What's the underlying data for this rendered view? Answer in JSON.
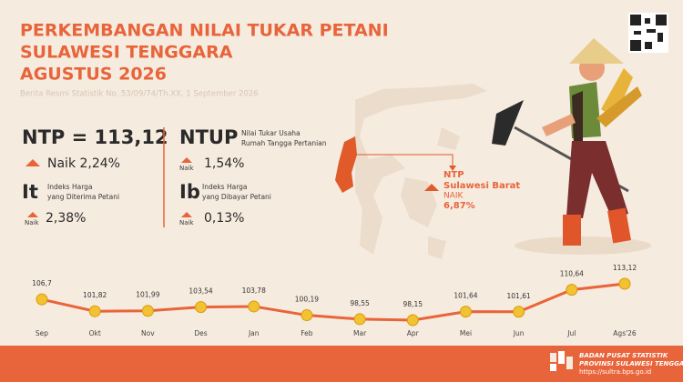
{
  "header": {
    "title_lines": [
      "PERKEMBANGAN NILAI TUKAR PETANI",
      "SULAWESI TENGGARA",
      "AGUSTUS 2026"
    ],
    "subtitle": "Berita Resmi Statistik No. 53/09/74/Th.XX, 1 September 2026"
  },
  "stats": {
    "ntp": {
      "label": "NTP = 113,12",
      "change": "Naik 2,24%"
    },
    "it": {
      "label": "It",
      "desc": [
        "Indeks Harga",
        "yang Diterima Petani"
      ],
      "change_word": "Naik",
      "change": "2,38%"
    },
    "ntup": {
      "label": "NTUP",
      "desc": [
        "Nilai Tukar Usaha",
        "Rumah Tangga Pertanian"
      ],
      "change_word": "Naik",
      "change": "1,54%"
    },
    "ib": {
      "label": "Ib",
      "desc": [
        "Indeks Harga",
        "yang Dibayar Petani"
      ],
      "change_word": "Naik",
      "change": "0,13%"
    }
  },
  "map_callout": {
    "lines": [
      "NTP",
      "Sulawesi Barat"
    ],
    "change_word": "NAIK",
    "change": "6,87%"
  },
  "footer": {
    "lines": [
      "BADAN PUSAT STATISTIK",
      "PROVINSI SULAWESI TENGGARA",
      "https://sultra.bps.go.id"
    ]
  },
  "chart_data": {
    "type": "line",
    "categories": [
      "Sep",
      "Okt",
      "Nov",
      "Des",
      "Jan",
      "Feb",
      "Mar",
      "Apr",
      "Mei",
      "Jun",
      "Jul",
      "Ags'26"
    ],
    "values": [
      106.7,
      101.82,
      101.99,
      103.54,
      103.78,
      100.19,
      98.55,
      98.15,
      101.64,
      101.61,
      110.64,
      113.12
    ],
    "value_labels": [
      "106,7",
      "101,82",
      "101,99",
      "103,54",
      "103,78",
      "100,19",
      "98,55",
      "98,15",
      "101,64",
      "101,61",
      "110,64",
      "113,12"
    ],
    "color": "#e8643a"
  }
}
